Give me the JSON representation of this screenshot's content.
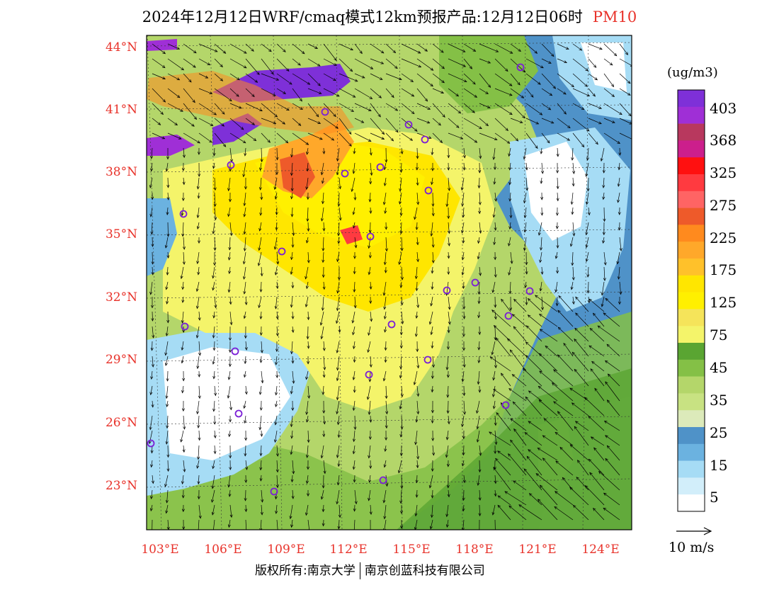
{
  "title": {
    "text": "2024年12月12日WRF/cmaq模式12km预报产品:12月12日06时",
    "species": "PM10"
  },
  "axes": {
    "lat_labels": [
      "44°N",
      "41°N",
      "38°N",
      "35°N",
      "32°N",
      "29°N",
      "26°N",
      "23°N"
    ],
    "lon_labels": [
      "103°E",
      "106°E",
      "109°E",
      "112°E",
      "115°E",
      "118°E",
      "121°E",
      "124°E"
    ]
  },
  "legend": {
    "units": "(ug/m3)",
    "labels": [
      "403",
      "368",
      "325",
      "275",
      "225",
      "175",
      "125",
      "75",
      "45",
      "35",
      "25",
      "15",
      "5"
    ],
    "colors": [
      "#7e30d8",
      "#9f2fd6",
      "#b8385e",
      "#cc1f8c",
      "#ff1010",
      "#ff3a40",
      "#ff6464",
      "#ee5a2a",
      "#ff8a1e",
      "#ffa82a",
      "#ffc12a",
      "#ffe600",
      "#fff000",
      "#f5e45a",
      "#f4f46a",
      "#5aa532",
      "#84c046",
      "#b4d66a",
      "#c8e282",
      "#dceaba",
      "#4f92c8",
      "#6bb2e0",
      "#a6dcf5",
      "#d2eefa",
      "#ffffff"
    ]
  },
  "wind_reference": {
    "label": "10 m/s"
  },
  "footer": {
    "left": "版权所有:南京大学",
    "right": "南京创蓝科技有限公司"
  }
}
